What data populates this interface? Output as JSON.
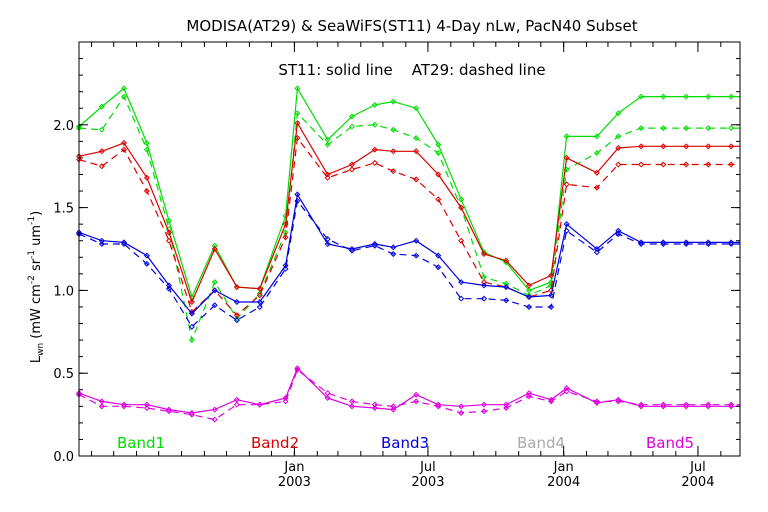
{
  "chart_data": {
    "type": "line",
    "title": "MODISA(AT29) & SeaWiFS(ST11) 4-Day nLw, PacN40 Subset",
    "subtitle": "ST11: solid line    AT29: dashed line",
    "ylabel_main": "L",
    "ylabel_sub": "wn",
    "ylabel_rest": " (mW cm",
    "ylabel_exp1": "-2",
    "ylabel_mid": " sr",
    "ylabel_exp2": "-1",
    "ylabel_mid2": " um",
    "ylabel_exp3": "-1",
    "ylabel_end": ")",
    "ylim": [
      0.0,
      2.5
    ],
    "yticks": [
      "0.0",
      "0.5",
      "1.0",
      "1.5",
      "2.0"
    ],
    "xlim": [
      "2002-03-15",
      "2004-08-27"
    ],
    "xticks": [
      {
        "date": "2003-01-01",
        "month": "Jan",
        "year": "2003"
      },
      {
        "date": "2003-07-01",
        "month": "Jul",
        "year": "2003"
      },
      {
        "date": "2004-01-01",
        "month": "Jan",
        "year": "2004"
      },
      {
        "date": "2004-07-01",
        "month": "Jul",
        "year": "2004"
      }
    ],
    "dates": [
      "2002-03-15",
      "2002-04-15",
      "2002-05-15",
      "2002-06-15",
      "2002-07-15",
      "2002-08-15",
      "2002-09-15",
      "2002-10-15",
      "2002-11-15",
      "2002-12-20",
      "2003-01-05",
      "2003-02-15",
      "2003-03-20",
      "2003-04-20",
      "2003-05-15",
      "2003-06-15",
      "2003-07-15",
      "2003-08-15",
      "2003-09-15",
      "2003-10-15",
      "2003-11-15",
      "2003-12-15",
      "2004-01-05",
      "2004-02-15",
      "2004-03-15",
      "2004-04-15",
      "2004-05-15",
      "2004-06-15",
      "2004-07-15",
      "2004-08-15",
      "2004-08-27"
    ],
    "series": [
      {
        "name": "Band1",
        "color": "#00dd00",
        "solid": [
          1.99,
          2.11,
          2.22,
          1.89,
          1.42,
          0.96,
          1.27,
          1.02,
          1.01,
          1.45,
          2.22,
          1.91,
          2.05,
          2.12,
          2.14,
          2.1,
          1.88,
          1.55,
          1.23,
          1.17,
          1.0,
          1.05,
          1.93,
          1.93,
          2.07,
          2.17,
          2.17,
          2.17,
          2.17,
          2.17,
          2.17
        ],
        "dashed": [
          1.98,
          1.97,
          2.17,
          1.85,
          1.37,
          0.7,
          1.05,
          0.83,
          0.98,
          1.35,
          2.07,
          1.88,
          1.99,
          2.0,
          1.97,
          1.92,
          1.83,
          1.5,
          1.08,
          1.04,
          0.97,
          1.03,
          1.73,
          1.83,
          1.93,
          1.98,
          1.98,
          1.98,
          1.98,
          1.98,
          1.98
        ]
      },
      {
        "name": "Band2",
        "color": "#dd0000",
        "solid": [
          1.81,
          1.84,
          1.89,
          1.68,
          1.35,
          0.93,
          1.25,
          1.02,
          1.01,
          1.4,
          2.01,
          1.7,
          1.76,
          1.85,
          1.84,
          1.84,
          1.7,
          1.5,
          1.22,
          1.18,
          1.03,
          1.09,
          1.8,
          1.71,
          1.86,
          1.87,
          1.87,
          1.87,
          1.87,
          1.87,
          1.87
        ],
        "dashed": [
          1.79,
          1.75,
          1.85,
          1.6,
          1.3,
          0.87,
          1.0,
          0.85,
          0.97,
          1.32,
          1.92,
          1.68,
          1.73,
          1.77,
          1.72,
          1.67,
          1.55,
          1.3,
          1.05,
          1.02,
          0.96,
          1.0,
          1.64,
          1.62,
          1.76,
          1.76,
          1.76,
          1.76,
          1.76,
          1.76,
          1.76
        ]
      },
      {
        "name": "Band3",
        "color": "#0000dd",
        "solid": [
          1.35,
          1.3,
          1.29,
          1.21,
          1.03,
          0.86,
          1.0,
          0.93,
          0.93,
          1.15,
          1.58,
          1.28,
          1.25,
          1.28,
          1.26,
          1.3,
          1.21,
          1.05,
          1.03,
          1.02,
          0.96,
          0.97,
          1.4,
          1.25,
          1.36,
          1.29,
          1.29,
          1.29,
          1.29,
          1.29,
          1.29
        ],
        "dashed": [
          1.34,
          1.28,
          1.28,
          1.16,
          1.01,
          0.78,
          0.91,
          0.82,
          0.9,
          1.13,
          1.54,
          1.31,
          1.24,
          1.27,
          1.22,
          1.21,
          1.14,
          0.95,
          0.95,
          0.94,
          0.9,
          0.9,
          1.36,
          1.23,
          1.34,
          1.28,
          1.28,
          1.28,
          1.28,
          1.28,
          1.28
        ]
      },
      {
        "name": "Band4",
        "color": "#aaaaaa",
        "solid": [],
        "dashed": []
      },
      {
        "name": "Band5",
        "color": "#dd00dd",
        "solid": [
          0.38,
          0.33,
          0.31,
          0.31,
          0.28,
          0.26,
          0.28,
          0.34,
          0.31,
          0.35,
          0.53,
          0.35,
          0.3,
          0.29,
          0.28,
          0.37,
          0.31,
          0.3,
          0.31,
          0.31,
          0.38,
          0.34,
          0.41,
          0.32,
          0.34,
          0.3,
          0.3,
          0.3,
          0.3,
          0.3,
          0.3
        ],
        "dashed": [
          0.37,
          0.3,
          0.3,
          0.29,
          0.27,
          0.25,
          0.22,
          0.31,
          0.31,
          0.33,
          0.52,
          0.38,
          0.33,
          0.31,
          0.3,
          0.33,
          0.3,
          0.26,
          0.27,
          0.29,
          0.36,
          0.33,
          0.39,
          0.33,
          0.33,
          0.31,
          0.31,
          0.31,
          0.31,
          0.31,
          0.31
        ]
      }
    ],
    "legend_placement": "bottom"
  }
}
